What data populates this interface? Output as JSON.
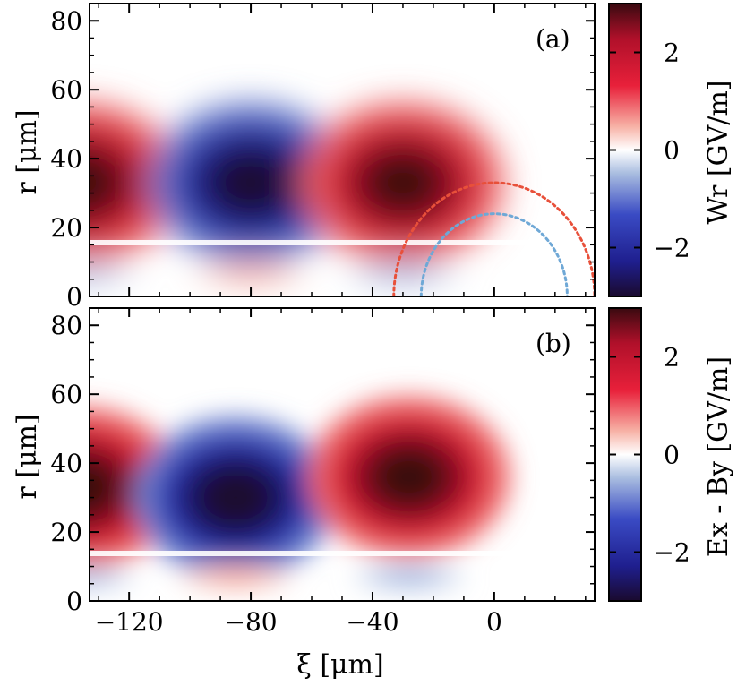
{
  "chart_data": [
    {
      "type": "heatmap",
      "panel_label": "(a)",
      "xlim": [
        -133,
        33
      ],
      "ylim": [
        0,
        85
      ],
      "xticks": [
        -120,
        -80,
        -40,
        0
      ],
      "yticks": [
        0,
        20,
        40,
        60,
        80
      ],
      "ylabel": "r [μm]",
      "colorbar": {
        "label": "Wr [GV/m]",
        "ticks": [
          -2,
          0,
          2
        ],
        "range": [
          -3,
          3
        ]
      },
      "blobs": [
        {
          "xi": -136,
          "r": 33,
          "value": 3.0
        },
        {
          "xi": -80,
          "r": 33,
          "value": -3.0
        },
        {
          "xi": -30,
          "r": 33,
          "value": 3.0
        },
        {
          "xi": -136,
          "r": 7,
          "value": -0.6
        },
        {
          "xi": -80,
          "r": 7,
          "value": 0.7
        },
        {
          "xi": -30,
          "r": 7,
          "value": -0.7
        }
      ],
      "overlays": [
        {
          "type": "dotted-arc",
          "color": "#e8503a",
          "center_xi": 0,
          "radius": 33
        },
        {
          "type": "dotted-arc",
          "color": "#6fa8d6",
          "center_xi": 0,
          "radius": 24
        }
      ]
    },
    {
      "type": "heatmap",
      "panel_label": "(b)",
      "xlim": [
        -133,
        33
      ],
      "ylim": [
        0,
        85
      ],
      "xticks": [
        -120,
        -80,
        -40,
        0
      ],
      "yticks": [
        0,
        20,
        40,
        60,
        80
      ],
      "xlabel": "ξ [μm]",
      "ylabel": "r [μm]",
      "colorbar": {
        "label": "Ex - By [GV/m]",
        "ticks": [
          -2,
          0,
          2
        ],
        "range": [
          -3,
          3
        ]
      },
      "blobs": [
        {
          "xi": -136,
          "r": 33,
          "value": 3.0
        },
        {
          "xi": -85,
          "r": 30,
          "value": -3.0
        },
        {
          "xi": -28,
          "r": 36,
          "value": 3.0
        },
        {
          "xi": -136,
          "r": 7,
          "value": -0.6
        },
        {
          "xi": -85,
          "r": 7,
          "value": 0.7
        },
        {
          "xi": -28,
          "r": 7,
          "value": -0.7
        }
      ]
    }
  ],
  "colormap": [
    "#1a0a2e",
    "#1f1f8f",
    "#3a4bc4",
    "#8fa6d8",
    "#ffffff",
    "#f59a8a",
    "#e8203a",
    "#b8102a",
    "#3a0a10"
  ]
}
